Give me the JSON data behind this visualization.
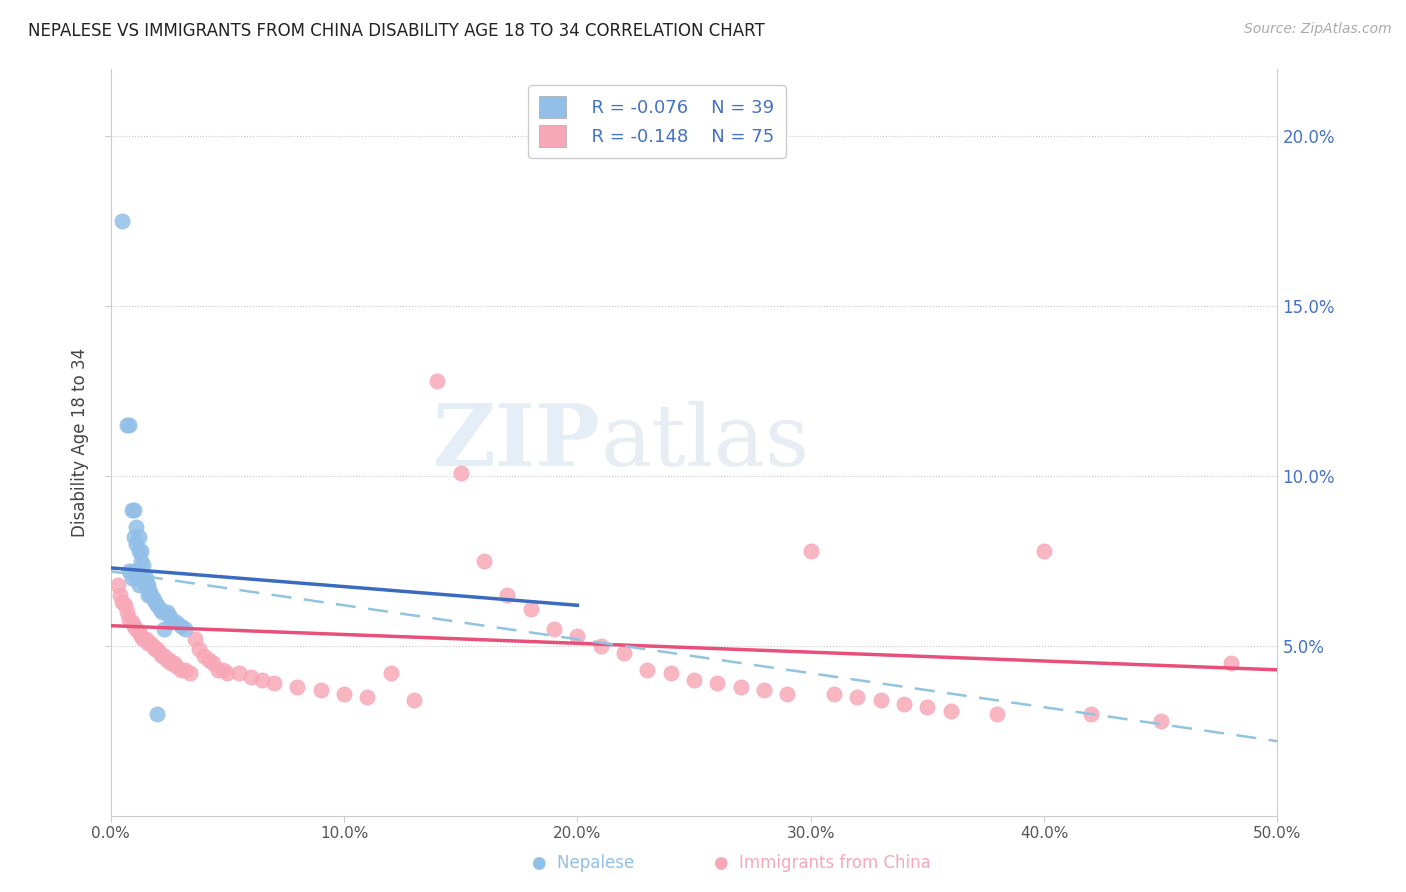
{
  "title": "NEPALESE VS IMMIGRANTS FROM CHINA DISABILITY AGE 18 TO 34 CORRELATION CHART",
  "source": "Source: ZipAtlas.com",
  "ylabel": "Disability Age 18 to 34",
  "xlim": [
    0.0,
    0.5
  ],
  "ylim": [
    0.0,
    0.22
  ],
  "xticks": [
    0.0,
    0.1,
    0.2,
    0.3,
    0.4,
    0.5
  ],
  "yticks_right": [
    0.05,
    0.1,
    0.15,
    0.2
  ],
  "xticklabels": [
    "0.0%",
    "10.0%",
    "20.0%",
    "30.0%",
    "40.0%",
    "50.0%"
  ],
  "yticklabels_right": [
    "5.0%",
    "10.0%",
    "15.0%",
    "20.0%"
  ],
  "legend_r1": "R = -0.076",
  "legend_n1": "N = 39",
  "legend_r2": "R = -0.148",
  "legend_n2": "N = 75",
  "color_nepalese": "#92bfe8",
  "color_china": "#f7a8b8",
  "color_line_nep": "#3a6bbf",
  "color_line_chi": "#e8507a",
  "color_line_dash": "#90c4e0",
  "watermark_zip": "ZIP",
  "watermark_atlas": "atlas",
  "nepalese_x": [
    0.005,
    0.007,
    0.008,
    0.009,
    0.01,
    0.01,
    0.011,
    0.011,
    0.012,
    0.012,
    0.013,
    0.013,
    0.014,
    0.014,
    0.015,
    0.015,
    0.016,
    0.016,
    0.017,
    0.018,
    0.019,
    0.02,
    0.021,
    0.022,
    0.024,
    0.025,
    0.026,
    0.028,
    0.03,
    0.032,
    0.01,
    0.011,
    0.012,
    0.008,
    0.009,
    0.015,
    0.017,
    0.02,
    0.023
  ],
  "nepalese_y": [
    0.175,
    0.115,
    0.115,
    0.09,
    0.09,
    0.082,
    0.085,
    0.08,
    0.082,
    0.078,
    0.078,
    0.075,
    0.074,
    0.07,
    0.07,
    0.068,
    0.068,
    0.065,
    0.065,
    0.064,
    0.063,
    0.062,
    0.061,
    0.06,
    0.06,
    0.059,
    0.058,
    0.057,
    0.056,
    0.055,
    0.072,
    0.07,
    0.068,
    0.072,
    0.07,
    0.068,
    0.066,
    0.03,
    0.055
  ],
  "china_x": [
    0.003,
    0.004,
    0.005,
    0.006,
    0.007,
    0.008,
    0.009,
    0.01,
    0.011,
    0.012,
    0.013,
    0.014,
    0.015,
    0.016,
    0.017,
    0.018,
    0.019,
    0.02,
    0.021,
    0.022,
    0.023,
    0.024,
    0.025,
    0.026,
    0.027,
    0.028,
    0.03,
    0.032,
    0.034,
    0.036,
    0.038,
    0.04,
    0.042,
    0.044,
    0.046,
    0.048,
    0.05,
    0.055,
    0.06,
    0.065,
    0.07,
    0.08,
    0.09,
    0.1,
    0.11,
    0.12,
    0.13,
    0.14,
    0.15,
    0.16,
    0.17,
    0.18,
    0.19,
    0.2,
    0.21,
    0.22,
    0.23,
    0.24,
    0.25,
    0.26,
    0.27,
    0.28,
    0.29,
    0.3,
    0.31,
    0.32,
    0.33,
    0.34,
    0.35,
    0.36,
    0.38,
    0.4,
    0.42,
    0.45,
    0.48
  ],
  "china_y": [
    0.068,
    0.065,
    0.063,
    0.062,
    0.06,
    0.058,
    0.057,
    0.056,
    0.055,
    0.054,
    0.053,
    0.052,
    0.052,
    0.051,
    0.051,
    0.05,
    0.049,
    0.049,
    0.048,
    0.047,
    0.047,
    0.046,
    0.046,
    0.045,
    0.045,
    0.044,
    0.043,
    0.043,
    0.042,
    0.052,
    0.049,
    0.047,
    0.046,
    0.045,
    0.043,
    0.043,
    0.042,
    0.042,
    0.041,
    0.04,
    0.039,
    0.038,
    0.037,
    0.036,
    0.035,
    0.042,
    0.034,
    0.128,
    0.101,
    0.075,
    0.065,
    0.061,
    0.055,
    0.053,
    0.05,
    0.048,
    0.043,
    0.042,
    0.04,
    0.039,
    0.038,
    0.037,
    0.036,
    0.078,
    0.036,
    0.035,
    0.034,
    0.033,
    0.032,
    0.031,
    0.03,
    0.078,
    0.03,
    0.028,
    0.045
  ],
  "nep_trend_x": [
    0.0,
    0.2
  ],
  "nep_trend_y": [
    0.073,
    0.062
  ],
  "chi_trend_x": [
    0.0,
    0.5
  ],
  "chi_trend_y": [
    0.056,
    0.043
  ],
  "dash_trend_x": [
    0.0,
    0.5
  ],
  "dash_trend_y": [
    0.072,
    0.022
  ]
}
